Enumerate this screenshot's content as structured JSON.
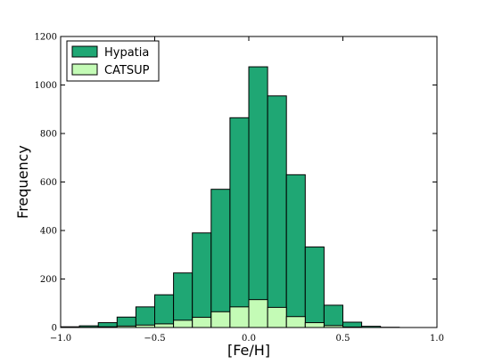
{
  "chart_data": {
    "type": "bar",
    "subtype": "histogram",
    "xlabel": "[Fe/H]",
    "ylabel": "Frequency",
    "xlim": [
      -1.0,
      1.0
    ],
    "ylim": [
      0,
      1200
    ],
    "xticks": [
      -1.0,
      -0.5,
      0.0,
      0.5,
      1.0
    ],
    "xtick_labels": [
      "−1.0",
      "−0.5",
      "0.0",
      "0.5",
      "1.0"
    ],
    "yticks": [
      0,
      200,
      400,
      600,
      800,
      1000,
      1200
    ],
    "ytick_labels": [
      "0",
      "200",
      "400",
      "600",
      "800",
      "1000",
      "1200"
    ],
    "bin_width": 0.1,
    "bin_left_edges": [
      -1.0,
      -0.9,
      -0.8,
      -0.7,
      -0.6,
      -0.5,
      -0.4,
      -0.3,
      -0.2,
      -0.1,
      0.0,
      0.1,
      0.2,
      0.3,
      0.4,
      0.5,
      0.6,
      0.7,
      0.8,
      0.9
    ],
    "series": [
      {
        "name": "Hypatia",
        "color": "#1fa774",
        "values": [
          3,
          7,
          20,
          43,
          85,
          135,
          225,
          390,
          570,
          865,
          1075,
          955,
          630,
          332,
          92,
          22,
          5,
          1,
          0,
          0
        ]
      },
      {
        "name": "CATSUP",
        "color": "#c4fbb6",
        "values": [
          0,
          1,
          3,
          6,
          10,
          15,
          30,
          42,
          65,
          85,
          115,
          83,
          45,
          20,
          8,
          2,
          0,
          0,
          0,
          0
        ]
      }
    ],
    "legend": {
      "position": "top-left",
      "entries": [
        "Hypatia",
        "CATSUP"
      ]
    },
    "grid": false
  }
}
